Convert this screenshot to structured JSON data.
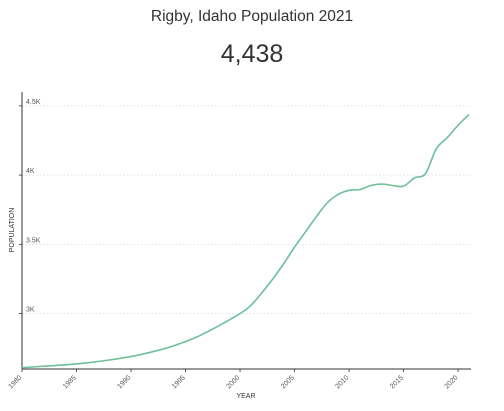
{
  "header": {
    "title": "Rigby, Idaho Population 2021",
    "value": "4,438"
  },
  "chart_data": {
    "type": "line",
    "title": "Rigby, Idaho Population 2021",
    "xlabel": "YEAR",
    "ylabel": "POPULATION",
    "xlim": [
      1980,
      2021
    ],
    "ylim": [
      2600,
      4600
    ],
    "x_ticks": [
      1980,
      1985,
      1990,
      1995,
      2000,
      2005,
      2010,
      2015,
      2020
    ],
    "y_ticks": [
      {
        "value": 3000,
        "label": "3K"
      },
      {
        "value": 3500,
        "label": "3.5K"
      },
      {
        "value": 4000,
        "label": "4K"
      },
      {
        "value": 4500,
        "label": "4.5K"
      }
    ],
    "line_color": "#6fbf9b",
    "series": [
      {
        "x": [
          1980,
          1982,
          1984,
          1986,
          1988,
          1990,
          1992,
          1994,
          1996,
          1998,
          2000,
          2001,
          2002,
          2003,
          2004,
          2005,
          2006,
          2007,
          2008,
          2009,
          2010,
          2011,
          2012,
          2013,
          2014,
          2015,
          2016,
          2017,
          2018,
          2019,
          2020,
          2021
        ],
        "y": [
          2610,
          2620,
          2630,
          2645,
          2665,
          2690,
          2725,
          2770,
          2830,
          2910,
          3000,
          3060,
          3150,
          3250,
          3360,
          3480,
          3590,
          3700,
          3800,
          3860,
          3890,
          3895,
          3925,
          3935,
          3925,
          3920,
          3980,
          4010,
          4190,
          4270,
          4360,
          4438
        ]
      }
    ]
  }
}
